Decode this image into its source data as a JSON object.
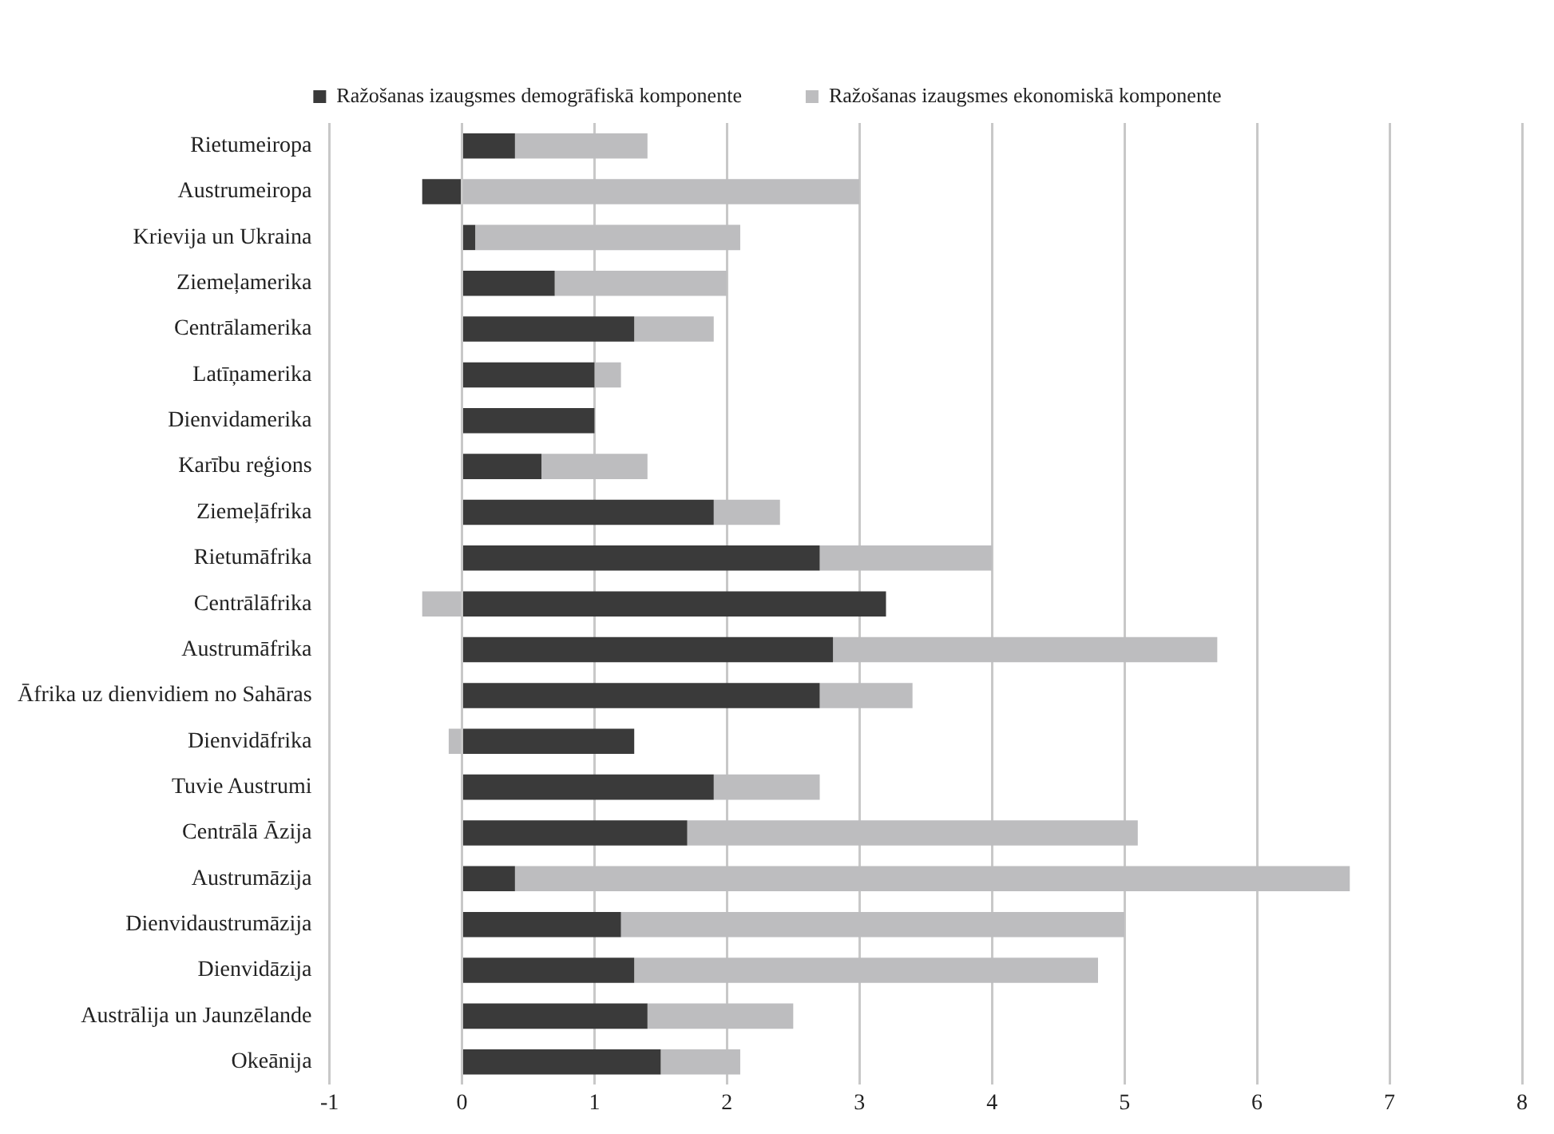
{
  "chart_data": {
    "type": "bar",
    "orientation": "horizontal",
    "stacked": true,
    "categories": [
      "Rietumeiropa",
      "Austrumeiropa",
      "Krievija un Ukraina",
      "Ziemeļamerika",
      "Centrālamerika",
      "Latīņamerika",
      "Dienvidamerika",
      "Karību reģions",
      "Ziemeļāfrika",
      "Rietumāfrika",
      "Centrālāfrika",
      "Austrumāfrika",
      "Āfrika uz dienvidiem no Sahāras",
      "Dienvidāfrika",
      "Tuvie Austrumi",
      "Centrālā Āzija",
      "Austrumāzija",
      "Dienvidaustrumāzija",
      "Dienvidāzija",
      "Austrālija un Jaunzēlande",
      "Okeānija"
    ],
    "series": [
      {
        "name": "Ražošanas izaugsmes demogrāfiskā komponente",
        "color": "#3a3a3a",
        "values": [
          0.4,
          -0.3,
          0.1,
          0.7,
          1.3,
          1.0,
          1.0,
          0.6,
          1.9,
          2.7,
          3.2,
          2.8,
          2.7,
          1.3,
          1.9,
          1.7,
          0.4,
          1.2,
          1.3,
          1.4,
          1.5
        ]
      },
      {
        "name": "Ražošanas izaugsmes ekonomiskā komponente",
        "color": "#bdbdbf",
        "values": [
          1.0,
          3.0,
          2.0,
          1.3,
          0.6,
          0.2,
          0,
          0.8,
          0.5,
          1.3,
          -0.3,
          2.9,
          0.7,
          -0.1,
          0.8,
          3.4,
          6.3,
          3.8,
          3.5,
          1.1,
          0.6
        ]
      }
    ],
    "xlim": [
      -1,
      8
    ],
    "xticks": [
      -1,
      0,
      1,
      2,
      3,
      4,
      5,
      6,
      7,
      8
    ],
    "grid": "x",
    "legend": "top"
  }
}
